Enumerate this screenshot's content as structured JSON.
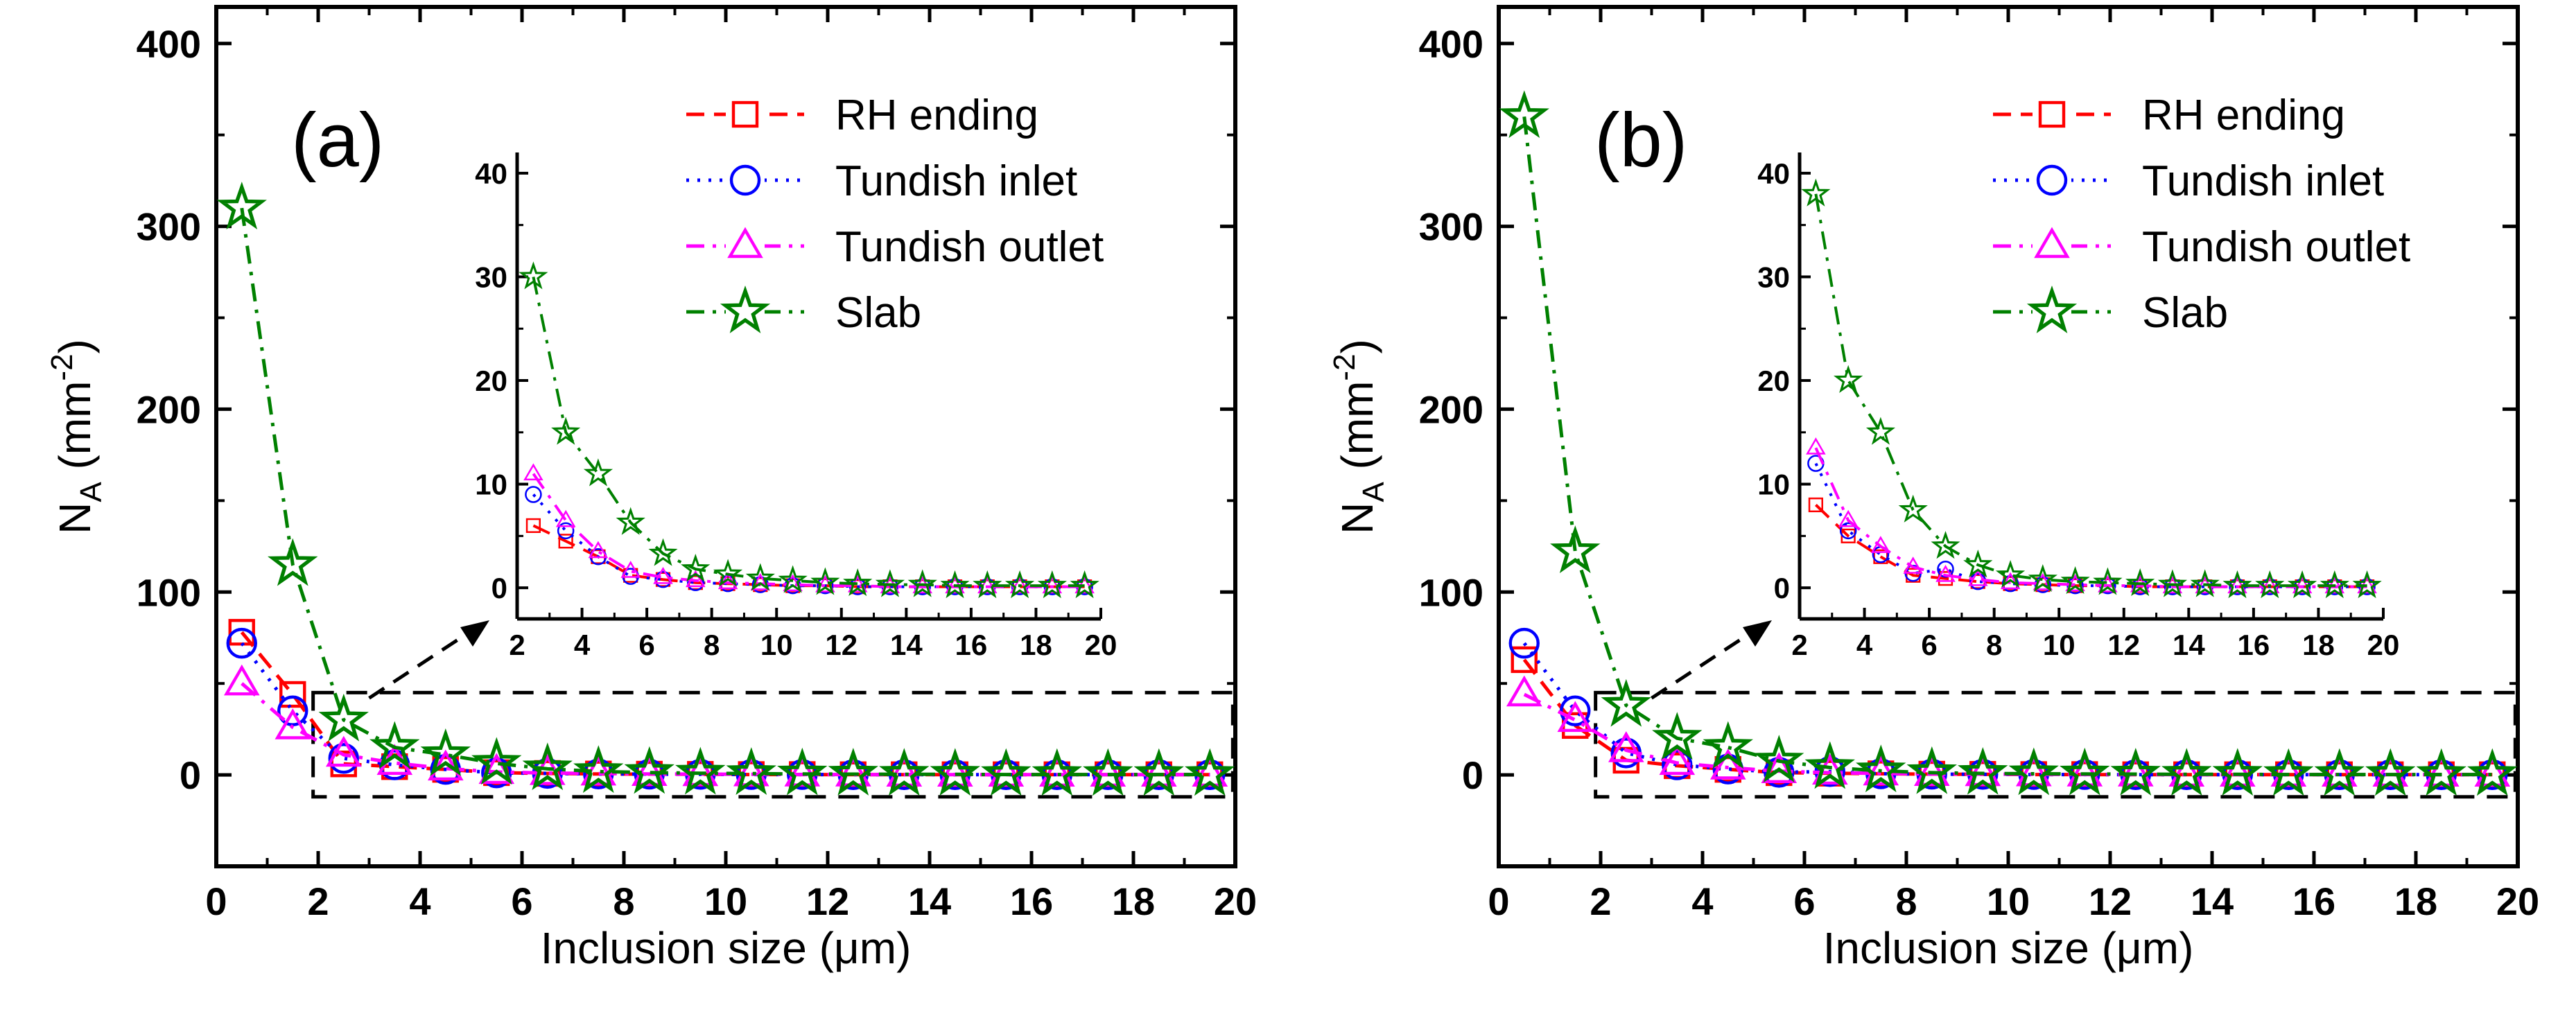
{
  "chart_data": [
    {
      "type": "line",
      "panel_label": "(a)",
      "xlabel": "Inclusion size (μm)",
      "ylabel": "N",
      "ylabel_sub": "A",
      "ylabel_unit_open": " (mm",
      "ylabel_exp": "-2",
      "ylabel_unit_close": ")",
      "xlim": [
        0,
        20
      ],
      "ylim": [
        -50,
        420
      ],
      "xticks": [
        "0",
        "2",
        "4",
        "6",
        "8",
        "10",
        "12",
        "14",
        "16",
        "18",
        "20"
      ],
      "yticks": [
        "0",
        "100",
        "200",
        "300",
        "400"
      ],
      "legend": "top-right",
      "x": [
        0.5,
        1.5,
        2.5,
        3.5,
        4.5,
        5.5,
        6.5,
        7.5,
        8.5,
        9.5,
        10.5,
        11.5,
        12.5,
        13.5,
        14.5,
        15.5,
        16.5,
        17.5,
        18.5,
        19.5
      ],
      "series": [
        {
          "name": "RH ending",
          "color": "#ff0000",
          "marker": "square",
          "dash": "dash",
          "values": [
            78,
            44,
            6,
            4.5,
            3,
            1.2,
            0.8,
            0.5,
            0.4,
            0.3,
            0.2,
            0.2,
            0.1,
            0.1,
            0.1,
            0.1,
            0.1,
            0.1,
            0.1,
            0.1
          ]
        },
        {
          "name": "Tundish inlet",
          "color": "#0000ff",
          "marker": "circle",
          "dash": "dot",
          "values": [
            72,
            35,
            9,
            5.5,
            3,
            1.1,
            0.8,
            0.5,
            0.4,
            0.3,
            0.2,
            0.2,
            0.1,
            0.1,
            0.1,
            0.1,
            0.1,
            0.1,
            0.1,
            0.1
          ]
        },
        {
          "name": "Tundish outlet",
          "color": "#ff00ff",
          "marker": "triangle",
          "dash": "dashdot",
          "values": [
            50,
            26,
            11,
            6.5,
            3.5,
            1.6,
            1.0,
            0.7,
            0.5,
            0.4,
            0.3,
            0.2,
            0.2,
            0.1,
            0.1,
            0.1,
            0.1,
            0.1,
            0.1,
            0.1
          ]
        },
        {
          "name": "Slab",
          "color": "#008000",
          "marker": "star",
          "dash": "dashdot",
          "values": [
            310,
            115,
            30,
            15,
            11,
            6.3,
            3.3,
            1.8,
            1.3,
            0.9,
            0.7,
            0.5,
            0.4,
            0.3,
            0.3,
            0.2,
            0.2,
            0.2,
            0.2,
            0.2
          ]
        }
      ],
      "inset": {
        "xlim": [
          2,
          20
        ],
        "ylim": [
          -3,
          42
        ],
        "xticks": [
          "2",
          "4",
          "6",
          "8",
          "10",
          "12",
          "14",
          "16",
          "18",
          "20"
        ],
        "yticks": [
          "0",
          "10",
          "20",
          "30",
          "40"
        ],
        "x_from": 2.5
      }
    },
    {
      "type": "line",
      "panel_label": "(b)",
      "xlabel": "Inclusion size (μm)",
      "ylabel": "N",
      "ylabel_sub": "A",
      "ylabel_unit_open": " (mm",
      "ylabel_exp": "-2",
      "ylabel_unit_close": ")",
      "xlim": [
        0,
        20
      ],
      "ylim": [
        -50,
        420
      ],
      "xticks": [
        "0",
        "2",
        "4",
        "6",
        "8",
        "10",
        "12",
        "14",
        "16",
        "18",
        "20"
      ],
      "yticks": [
        "0",
        "100",
        "200",
        "300",
        "400"
      ],
      "legend": "top-right",
      "x": [
        0.5,
        1.5,
        2.5,
        3.5,
        4.5,
        5.5,
        6.5,
        7.5,
        8.5,
        9.5,
        10.5,
        11.5,
        12.5,
        13.5,
        14.5,
        15.5,
        16.5,
        17.5,
        18.5,
        19.5
      ],
      "series": [
        {
          "name": "RH ending",
          "color": "#ff0000",
          "marker": "square",
          "dash": "dash",
          "values": [
            63,
            27,
            8,
            5,
            3,
            1.2,
            0.9,
            0.6,
            0.4,
            0.3,
            0.2,
            0.2,
            0.1,
            0.1,
            0.1,
            0.1,
            0.1,
            0.1,
            0.1,
            0.1
          ]
        },
        {
          "name": "Tundish inlet",
          "color": "#0000ff",
          "marker": "circle",
          "dash": "dot",
          "values": [
            72,
            35,
            12,
            5.5,
            3.2,
            1.4,
            1.8,
            0.6,
            0.4,
            0.3,
            0.2,
            0.2,
            0.1,
            0.1,
            0.1,
            0.1,
            0.1,
            0.1,
            0.1,
            0.1
          ]
        },
        {
          "name": "Tundish outlet",
          "color": "#ff00ff",
          "marker": "triangle",
          "dash": "dashdot",
          "values": [
            44,
            30,
            13.5,
            6.5,
            4,
            2,
            1.2,
            0.8,
            0.5,
            0.4,
            0.3,
            0.2,
            0.2,
            0.1,
            0.1,
            0.1,
            0.1,
            0.1,
            0.1,
            0.1
          ]
        },
        {
          "name": "Slab",
          "color": "#008000",
          "marker": "star",
          "dash": "dashdot",
          "values": [
            360,
            122,
            38,
            20,
            15,
            7.5,
            4,
            2.2,
            1.2,
            0.8,
            0.6,
            0.5,
            0.4,
            0.3,
            0.3,
            0.2,
            0.2,
            0.2,
            0.2,
            0.2
          ]
        }
      ],
      "inset": {
        "xlim": [
          2,
          20
        ],
        "ylim": [
          -3,
          42
        ],
        "xticks": [
          "2",
          "4",
          "6",
          "8",
          "10",
          "12",
          "14",
          "16",
          "18",
          "20"
        ],
        "yticks": [
          "0",
          "10",
          "20",
          "30",
          "40"
        ],
        "x_from": 2.5
      }
    }
  ]
}
